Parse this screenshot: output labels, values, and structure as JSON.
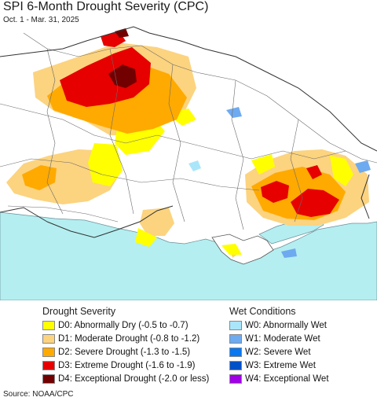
{
  "header": {
    "title": "SPI 6-Month Drought Severity (CPC)",
    "subtitle": "Oct. 1 - Mar. 31, 2025"
  },
  "legend": {
    "drought": {
      "heading": "Drought Severity",
      "items": [
        {
          "label": "D0: Abnormally Dry (-0.5 to -0.7)",
          "color": "#ffff00"
        },
        {
          "label": "D1: Moderate Drought (-0.8 to -1.2)",
          "color": "#fcd37f"
        },
        {
          "label": "D2: Severe Drought (-1.3 to -1.5)",
          "color": "#ffaa00"
        },
        {
          "label": "D3: Extreme Drought (-1.6 to -1.9)",
          "color": "#e60000"
        },
        {
          "label": "D4: Exceptional Drought (-2.0 or less)",
          "color": "#730000"
        }
      ]
    },
    "wet": {
      "heading": "Wet Conditions",
      "items": [
        {
          "label": "W0: Abnormally Wet",
          "color": "#aae6fa"
        },
        {
          "label": "W1: Moderate Wet",
          "color": "#6eaaf0"
        },
        {
          "label": "W2: Severe Wet",
          "color": "#0a78f0"
        },
        {
          "label": "W3: Extreme Wet",
          "color": "#0050c8"
        },
        {
          "label": "W4: Exceptional Wet",
          "color": "#a000e6"
        }
      ]
    }
  },
  "source": "Source: NOAA/CPC",
  "colors": {
    "sea": "#b4eef0",
    "land": "#ffffff",
    "border": "#555555"
  }
}
